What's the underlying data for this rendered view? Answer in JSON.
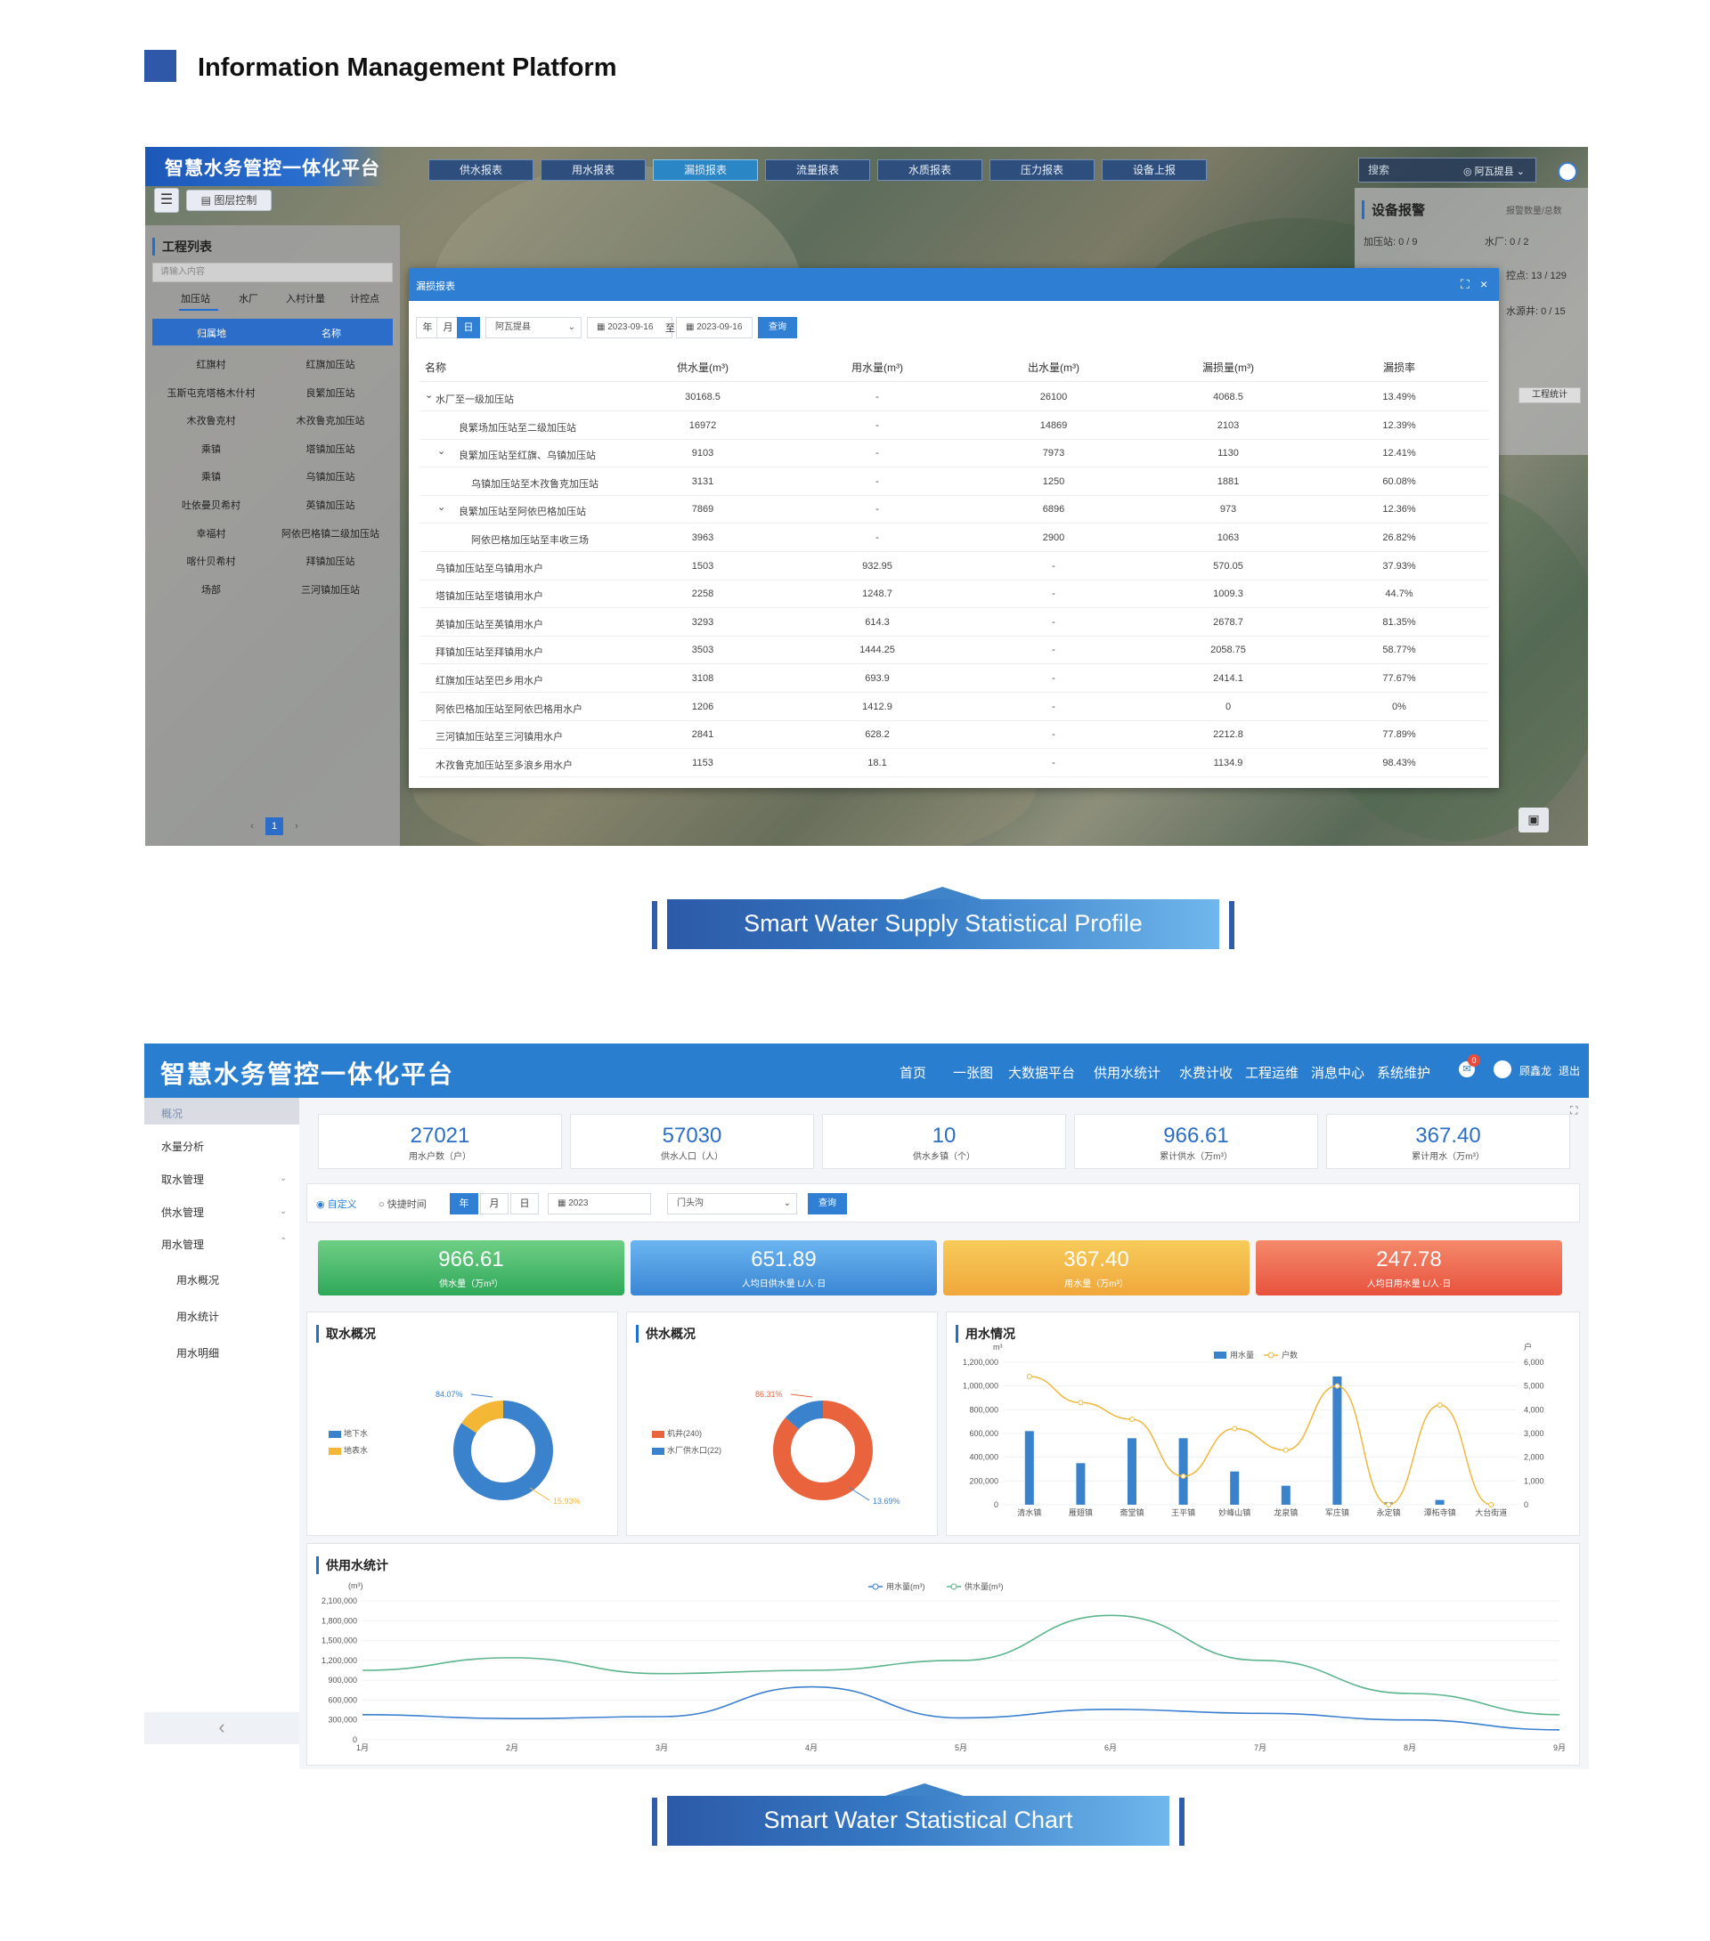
{
  "header": {
    "title": "Information Management Platform"
  },
  "screen1": {
    "app_title": "智慧水务管控一体化平台",
    "nav_tabs": [
      "供水报表",
      "用水报表",
      "漏损报表",
      "流量报表",
      "水质报表",
      "压力报表",
      "设备上报"
    ],
    "search_placeholder": "搜索",
    "location": "阿瓦提县",
    "layer_control": "图层控制",
    "left_panel": {
      "title": "工程列表",
      "search_placeholder": "请输入内容",
      "tabs": [
        "加压站",
        "水厂",
        "入村计量",
        "计控点"
      ],
      "columns": [
        "归属地",
        "名称"
      ],
      "rows": [
        [
          "红旗村",
          "红旗加压站"
        ],
        [
          "玉斯屯克塔格木什村",
          "良繁加压站"
        ],
        [
          "木孜鲁克村",
          "木孜鲁克加压站"
        ],
        [
          "乘镇",
          "塔镇加压站"
        ],
        [
          "乘镇",
          "乌镇加压站"
        ],
        [
          "吐依曼贝希村",
          "英镇加压站"
        ],
        [
          "幸福村",
          "阿依巴格镇二级加压站"
        ],
        [
          "喀什贝希村",
          "拜镇加压站"
        ],
        [
          "场部",
          "三河镇加压站"
        ]
      ],
      "page": "1"
    },
    "right_panel": {
      "title": "设备报警",
      "subtitle": "报警数量/总数",
      "items": [
        "加压站: 0 / 9",
        "水厂: 0 / 2",
        "控点: 13 / 129",
        "水源井: 0 / 15"
      ],
      "stats_button": "工程统计"
    },
    "modal": {
      "title": "漏损报表",
      "period_buttons": [
        "年",
        "月",
        "日"
      ],
      "region": "阿瓦提县",
      "date_from": "2023-09-16",
      "date_sep": "至",
      "date_to": "2023-09-16",
      "query_label": "查询",
      "columns": [
        "名称",
        "供水量(m³)",
        "用水量(m³)",
        "出水量(m³)",
        "漏损量(m³)",
        "漏损率"
      ],
      "rows": [
        {
          "name": "水厂至一级加压站",
          "indent": 0,
          "caret": true,
          "supply": "30168.5",
          "use": "-",
          "out": "26100",
          "loss": "4068.5",
          "rate": "13.49%"
        },
        {
          "name": "良繁场加压站至二级加压站",
          "indent": 1,
          "caret": false,
          "supply": "16972",
          "use": "-",
          "out": "14869",
          "loss": "2103",
          "rate": "12.39%"
        },
        {
          "name": "良繁加压站至红旗、乌镇加压站",
          "indent": 1,
          "caret": true,
          "supply": "9103",
          "use": "-",
          "out": "7973",
          "loss": "1130",
          "rate": "12.41%"
        },
        {
          "name": "乌镇加压站至木孜鲁克加压站",
          "indent": 2,
          "caret": false,
          "supply": "3131",
          "use": "-",
          "out": "1250",
          "loss": "1881",
          "rate": "60.08%"
        },
        {
          "name": "良繁加压站至阿依巴格加压站",
          "indent": 1,
          "caret": true,
          "supply": "7869",
          "use": "-",
          "out": "6896",
          "loss": "973",
          "rate": "12.36%"
        },
        {
          "name": "阿依巴格加压站至丰收三场",
          "indent": 2,
          "caret": false,
          "supply": "3963",
          "use": "-",
          "out": "2900",
          "loss": "1063",
          "rate": "26.82%"
        },
        {
          "name": "乌镇加压站至乌镇用水户",
          "indent": 0,
          "caret": false,
          "supply": "1503",
          "use": "932.95",
          "out": "-",
          "loss": "570.05",
          "rate": "37.93%"
        },
        {
          "name": "塔镇加压站至塔镇用水户",
          "indent": 0,
          "caret": false,
          "supply": "2258",
          "use": "1248.7",
          "out": "-",
          "loss": "1009.3",
          "rate": "44.7%"
        },
        {
          "name": "英镇加压站至英镇用水户",
          "indent": 0,
          "caret": false,
          "supply": "3293",
          "use": "614.3",
          "out": "-",
          "loss": "2678.7",
          "rate": "81.35%"
        },
        {
          "name": "拜镇加压站至拜镇用水户",
          "indent": 0,
          "caret": false,
          "supply": "3503",
          "use": "1444.25",
          "out": "-",
          "loss": "2058.75",
          "rate": "58.77%"
        },
        {
          "name": "红旗加压站至巴乡用水户",
          "indent": 0,
          "caret": false,
          "supply": "3108",
          "use": "693.9",
          "out": "-",
          "loss": "2414.1",
          "rate": "77.67%"
        },
        {
          "name": "阿依巴格加压站至阿依巴格用水户",
          "indent": 0,
          "caret": false,
          "supply": "1206",
          "use": "1412.9",
          "out": "-",
          "loss": "0",
          "rate": "0%"
        },
        {
          "name": "三河镇加压站至三河镇用水户",
          "indent": 0,
          "caret": false,
          "supply": "2841",
          "use": "628.2",
          "out": "-",
          "loss": "2212.8",
          "rate": "77.89%"
        },
        {
          "name": "木孜鲁克加压站至多浪乡用水户",
          "indent": 0,
          "caret": false,
          "supply": "1153",
          "use": "18.1",
          "out": "-",
          "loss": "1134.9",
          "rate": "98.43%"
        }
      ]
    }
  },
  "caption1": "Smart Water Supply Statistical Profile",
  "screen2": {
    "app_title": "智慧水务管控一体化平台",
    "nav": [
      "首页",
      "一张图",
      "大数据平台",
      "供用水统计",
      "水费计收",
      "工程运维",
      "消息中心",
      "系统维护"
    ],
    "user": "顾鑫龙",
    "logout": "退出",
    "notif_count": "0",
    "sidebar": {
      "overview": "概况",
      "items": [
        "水量分析",
        "取水管理",
        "供水管理",
        "用水管理"
      ],
      "subitems": [
        "用水概况",
        "用水统计",
        "用水明细"
      ],
      "collapse": "‹"
    },
    "stats": [
      {
        "value": "27021",
        "label": "用水户数（户）"
      },
      {
        "value": "57030",
        "label": "供水人口（人）"
      },
      {
        "value": "10",
        "label": "供水乡镇（个）"
      },
      {
        "value": "966.61",
        "label": "累计供水（万m³）"
      },
      {
        "value": "367.40",
        "label": "累计用水（万m³）"
      }
    ],
    "filter": {
      "custom": "自定义",
      "quick": "快捷时间",
      "buttons": [
        "年",
        "月",
        "日"
      ],
      "year": "2023",
      "location": "门头沟",
      "query": "查询"
    },
    "kpis": [
      {
        "value": "966.61",
        "label": "供水量（万m³）",
        "color1": "#6fcf84",
        "color2": "#2fa85a"
      },
      {
        "value": "651.89",
        "label": "人均日供水量 L/人·日",
        "color1": "#6ab5ef",
        "color2": "#3a86d4"
      },
      {
        "value": "367.40",
        "label": "用水量（万m³）",
        "color1": "#f7cc5a",
        "color2": "#f0a73b"
      },
      {
        "value": "247.78",
        "label": "人均日用水量 L/人·日",
        "color1": "#f48a6a",
        "color2": "#e8523e"
      }
    ]
  },
  "chart_data": [
    {
      "type": "pie",
      "title": "取水概况",
      "categories": [
        "地下水",
        "地表水"
      ],
      "values": [
        84.07,
        15.93
      ],
      "labels": [
        "84.07%",
        "15.93%"
      ],
      "colors": [
        "#3b82cc",
        "#f3b635"
      ],
      "legend": "left"
    },
    {
      "type": "pie",
      "title": "供水概况",
      "categories": [
        "机井(240)",
        "水厂供水口(22)"
      ],
      "values": [
        86.31,
        13.69
      ],
      "labels": [
        "86.31%",
        "13.69%"
      ],
      "colors": [
        "#e9643c",
        "#3b82cc"
      ],
      "legend": "left"
    },
    {
      "type": "bar",
      "title": "用水情况",
      "ylabel": "m³",
      "y2label": "户",
      "categories": [
        "清水镇",
        "雁翅镇",
        "斋堂镇",
        "王平镇",
        "妙峰山镇",
        "龙泉镇",
        "军庄镇",
        "永定镇",
        "潭柘寺镇",
        "大台街道"
      ],
      "series": [
        {
          "name": "用水量",
          "type": "bar",
          "axis": "left",
          "values": [
            620000,
            350000,
            560000,
            560000,
            280000,
            160000,
            1080000,
            20000,
            40000,
            0
          ]
        },
        {
          "name": "户数",
          "type": "line",
          "axis": "right",
          "values": [
            5400,
            4300,
            3600,
            1200,
            3200,
            2300,
            5000,
            0,
            4200,
            0
          ]
        }
      ],
      "ylim": [
        0,
        1200000
      ],
      "yticks": [
        "1,200,000",
        "1,000,000",
        "800,000",
        "600,000",
        "400,000",
        "200,000",
        "0"
      ],
      "y2lim": [
        0,
        6000
      ],
      "y2ticks": [
        "6,000",
        "5,000",
        "4,000",
        "3,000",
        "2,000",
        "1,000",
        "0"
      ],
      "legend": "top"
    },
    {
      "type": "line",
      "title": "供用水统计",
      "ylabel": "(m³)",
      "x": [
        "1月",
        "2月",
        "3月",
        "4月",
        "5月",
        "6月",
        "7月",
        "8月",
        "9月"
      ],
      "series": [
        {
          "name": "用水量(m³)",
          "color": "#3b7fcf",
          "values": [
            380000,
            320000,
            350000,
            800000,
            330000,
            460000,
            400000,
            300000,
            150000
          ]
        },
        {
          "name": "供水量(m³)",
          "color": "#5cb58c",
          "values": [
            1050000,
            1240000,
            1000000,
            1050000,
            1200000,
            1880000,
            1200000,
            700000,
            380000
          ]
        }
      ],
      "ylim": [
        0,
        2100000
      ],
      "yticks": [
        "2,100,000",
        "1,800,000",
        "1,500,000",
        "1,200,000",
        "900,000",
        "600,000",
        "300,000",
        "0"
      ],
      "legend": "top"
    }
  ],
  "caption2": "Smart Water Statistical Chart"
}
